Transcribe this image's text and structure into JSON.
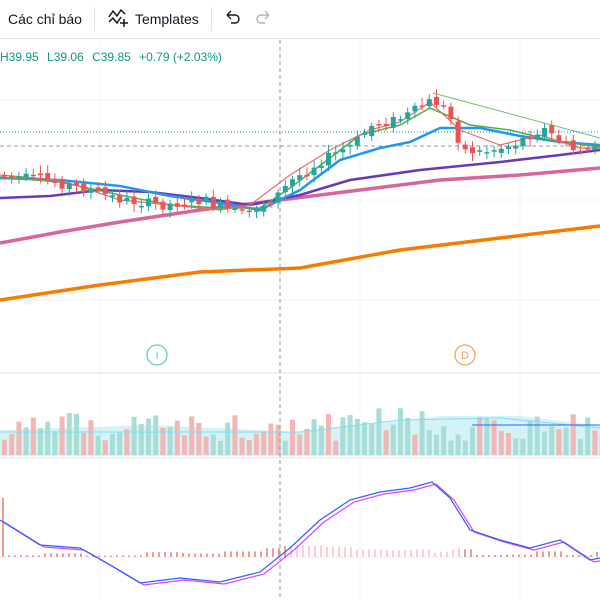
{
  "toolbar": {
    "indicators_label": "Các chỉ báo",
    "templates_label": "Templates",
    "icons": [
      "indicators-icon",
      "templates-icon",
      "undo-icon",
      "redo-icon"
    ]
  },
  "ohlc": {
    "high": "H39.95",
    "low": "L39.06",
    "close": "C39.85",
    "change": "+0.79 (+2.03%)"
  },
  "markers": {
    "i_label": "I",
    "d_label": "D"
  },
  "colors": {
    "up": "#26a69a",
    "down": "#ef5350",
    "ma_blue": "#2196f3",
    "ma_purple": "#673ab7",
    "ma_pink": "#d6679c",
    "ma_orange": "#f57c00",
    "ma_green": "#4caf50",
    "ma_red": "#f06a6a",
    "macd": "#2962ff",
    "signal": "#e040fb"
  }
}
